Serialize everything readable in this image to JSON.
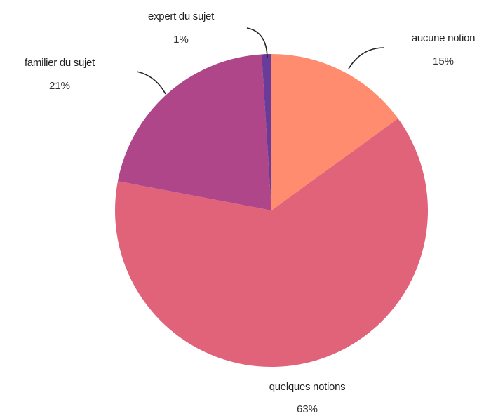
{
  "chart_data": {
    "type": "pie",
    "title": "",
    "slices": [
      {
        "label": "aucune notion",
        "value": 15,
        "value_label": "15%",
        "color": "#FF8C6E"
      },
      {
        "label": "quelques notions",
        "value": 63,
        "value_label": "63%",
        "color": "#E0637A"
      },
      {
        "label": "familier du sujet",
        "value": 21,
        "value_label": "21%",
        "color": "#B0468A"
      },
      {
        "label": "expert du sujet",
        "value": 1,
        "value_label": "1%",
        "color": "#6A3C9A"
      }
    ],
    "start_angle_deg": 0,
    "direction": "clockwise",
    "legend": "none",
    "labels": "outside with leader lines"
  }
}
